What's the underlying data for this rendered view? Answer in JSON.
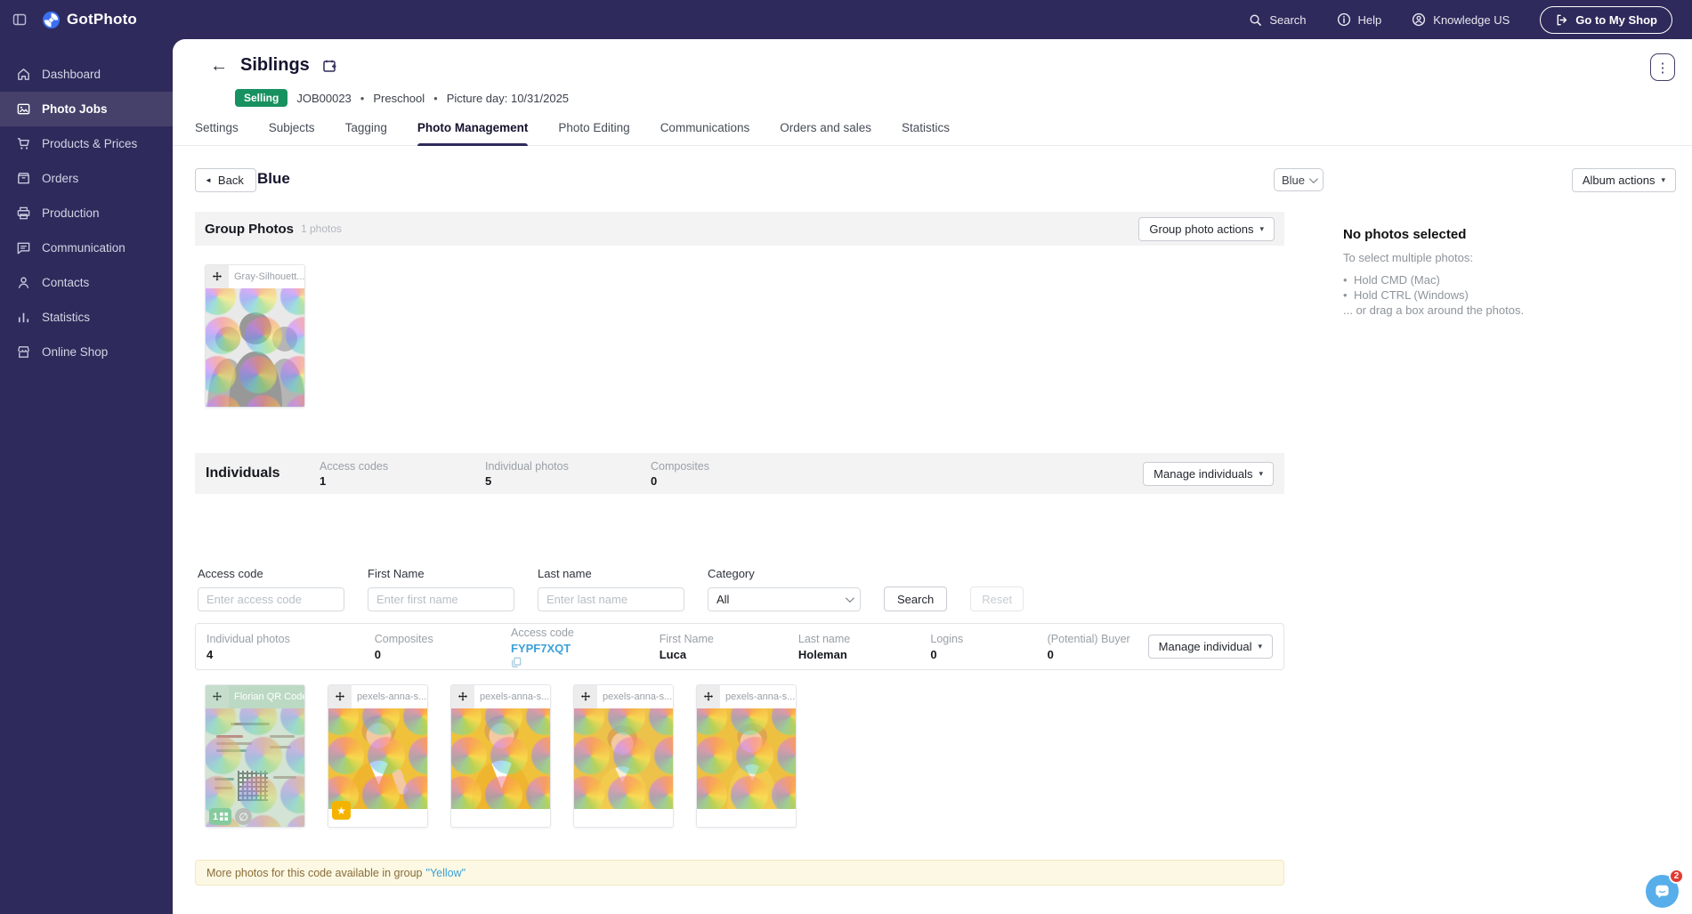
{
  "topbar": {
    "logo_text": "GotPhoto",
    "search_label": "Search",
    "help_label": "Help",
    "account_label": "Knowledge US",
    "shop_button_label": "Go to My Shop"
  },
  "sidebar": {
    "items": [
      {
        "label": "Dashboard",
        "icon": "home-icon",
        "active": false
      },
      {
        "label": "Photo Jobs",
        "icon": "photo-icon",
        "active": true
      },
      {
        "label": "Products & Prices",
        "icon": "cart-icon",
        "active": false
      },
      {
        "label": "Orders",
        "icon": "orders-box-icon",
        "active": false
      },
      {
        "label": "Production",
        "icon": "printer-icon",
        "active": false
      },
      {
        "label": "Communication",
        "icon": "chat-icon",
        "active": false
      },
      {
        "label": "Contacts",
        "icon": "person-icon",
        "active": false
      },
      {
        "label": "Statistics",
        "icon": "bar-chart-icon",
        "active": false
      },
      {
        "label": "Online Shop",
        "icon": "storefront-icon",
        "active": false
      }
    ]
  },
  "header": {
    "title": "Siblings",
    "status_badge": "Selling",
    "job_id": "JOB00023",
    "separator": "•",
    "job_type": "Preschool",
    "picture_day": "Picture day: 10/31/2025"
  },
  "tabs": [
    {
      "label": "Settings"
    },
    {
      "label": "Subjects"
    },
    {
      "label": "Tagging"
    },
    {
      "label": "Photo Management",
      "active": true
    },
    {
      "label": "Photo Editing"
    },
    {
      "label": "Communications"
    },
    {
      "label": "Orders and sales"
    },
    {
      "label": "Statistics"
    }
  ],
  "toolbar": {
    "back_label": "Back",
    "album_title": "Blue",
    "album_select_value": "Blue",
    "album_actions_label": "Album actions"
  },
  "group_photos": {
    "title": "Group Photos",
    "count_label": "1 photos",
    "actions_label": "Group photo actions",
    "photos": [
      {
        "name": "Gray-Silhouett..."
      }
    ]
  },
  "selection_panel": {
    "title": "No photos selected",
    "subtitle": "To select multiple photos:",
    "bullets": [
      "Hold CMD (Mac)",
      "Hold CTRL (Windows)"
    ],
    "footer": "... or drag a box around the photos."
  },
  "individuals": {
    "title": "Individuals",
    "stats": [
      {
        "label": "Access codes",
        "value": "1"
      },
      {
        "label": "Individual photos",
        "value": "5"
      },
      {
        "label": "Composites",
        "value": "0"
      }
    ],
    "manage_label": "Manage individuals"
  },
  "search_form": {
    "access_code": {
      "label": "Access code",
      "placeholder": "Enter access code",
      "value": ""
    },
    "first_name": {
      "label": "First Name",
      "placeholder": "Enter first name",
      "value": ""
    },
    "last_name": {
      "label": "Last name",
      "placeholder": "Enter last name",
      "value": ""
    },
    "category": {
      "label": "Category",
      "value": "All"
    },
    "search_label": "Search",
    "reset_label": "Reset"
  },
  "individual_row": {
    "columns": [
      {
        "label": "Individual photos",
        "value": "4"
      },
      {
        "label": "Composites",
        "value": "0"
      },
      {
        "label": "Access code",
        "value": "FYPF7XQT"
      },
      {
        "label": "First Name",
        "value": "Luca"
      },
      {
        "label": "Last name",
        "value": "Holeman"
      },
      {
        "label": "Logins",
        "value": "0"
      },
      {
        "label": "(Potential) Buyer",
        "value": "0"
      }
    ],
    "manage_label": "Manage individual"
  },
  "individual_photos": [
    {
      "name": "Florian QR Code",
      "type": "qr",
      "badge_count": "1"
    },
    {
      "name": "pexels-anna-s...",
      "type": "kid",
      "starred": true
    },
    {
      "name": "pexels-anna-s...",
      "type": "kid"
    },
    {
      "name": "pexels-anna-s...",
      "type": "kid"
    },
    {
      "name": "pexels-anna-s...",
      "type": "kid"
    }
  ],
  "notice": {
    "text": "More photos for this code available in group",
    "link": "\"Yellow\""
  },
  "chat": {
    "unread_count": "2"
  },
  "icons": {
    "star": "★",
    "hidden": "∅",
    "kebab": "⋮",
    "back_arrow": "←",
    "back_triangle": "◄",
    "caret": "▾"
  },
  "colors": {
    "navy": "#2e2a5b",
    "selling_green": "#17915f",
    "link_blue": "#3ba1d9",
    "notice_bg": "#fcf8e3",
    "notice_border": "#f3e7c3",
    "notice_text": "#8a6d3b",
    "star_yellow": "#f5b301",
    "chat_blue": "#57aeea",
    "badge_red": "#e23b33"
  }
}
